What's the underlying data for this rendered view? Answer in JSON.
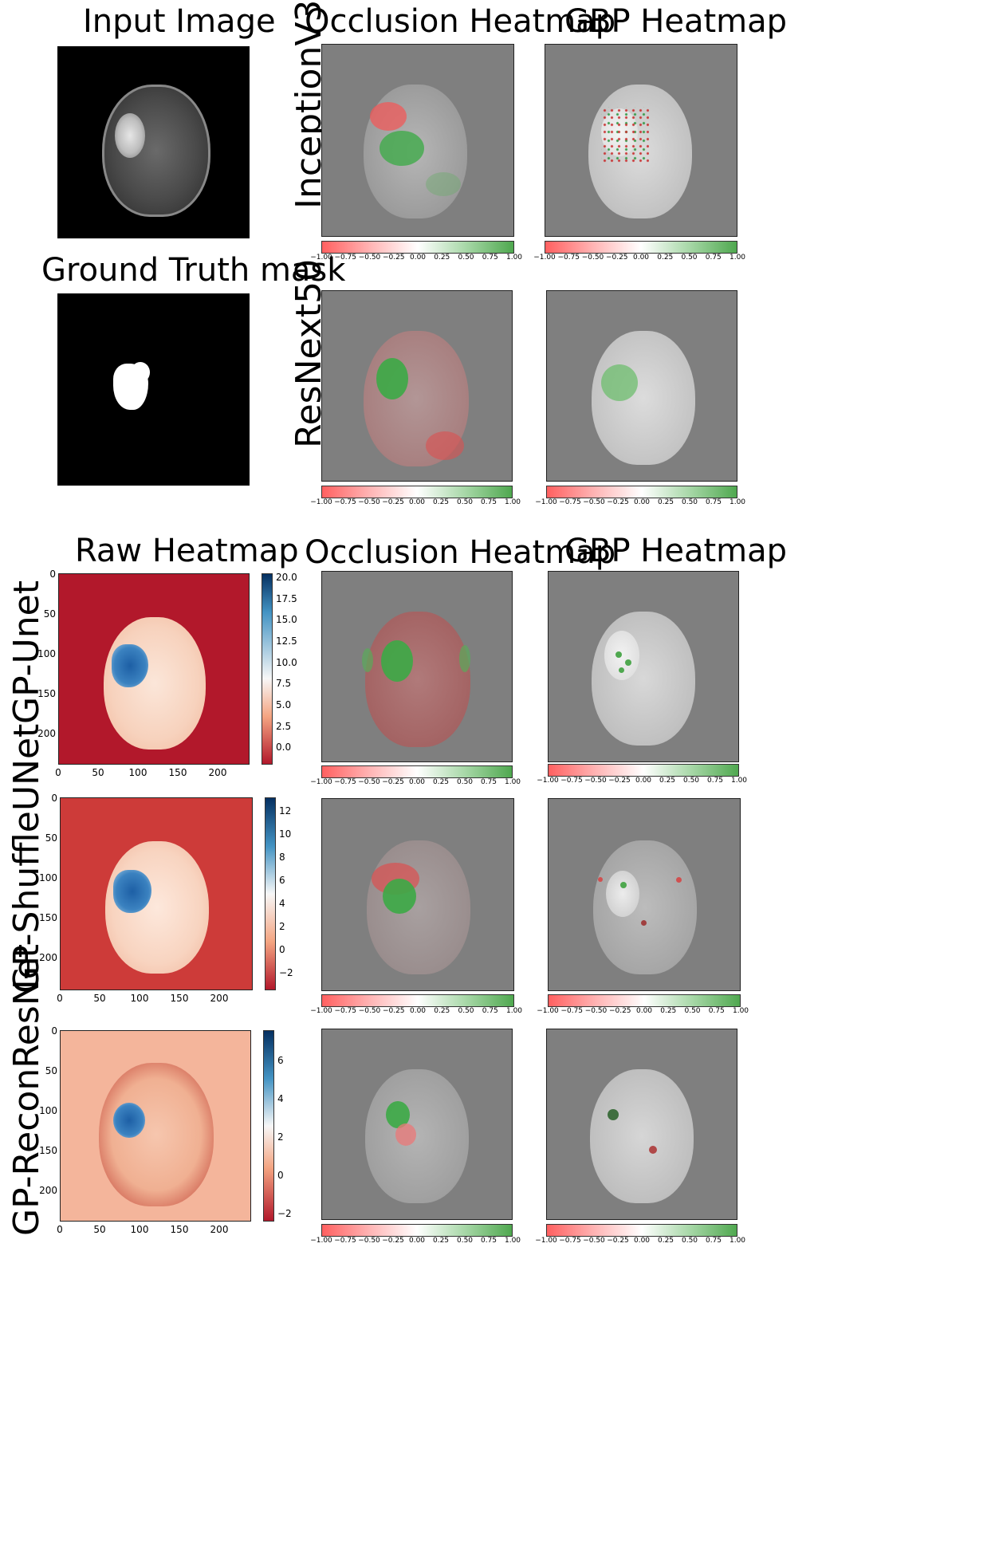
{
  "titles": {
    "input_image": "Input Image",
    "occlusion_top": "Occlusion Heatmap",
    "gbp_top": "GBP Heatmap",
    "ground_truth": "Ground Truth mask",
    "raw_heatmap": "Raw Heatmap",
    "occlusion_bottom": "Occlusion Heatmap",
    "gbp_bottom": "GBP Heatmap"
  },
  "row_labels": {
    "inception": "InceptionV3",
    "resnext": "ResNext50",
    "gp_unet": "GP-Unet",
    "gp_shuffle": "GP-ShuffleUNet",
    "gp_recon": "GP-ReconResNet"
  },
  "heatmap_colorbar_ticks": [
    "−1.00",
    "−0.75",
    "−0.50",
    "−0.25",
    "0.00",
    "0.25",
    "0.50",
    "0.75",
    "1.00"
  ],
  "raw_axis": {
    "x_ticks": [
      "0",
      "50",
      "100",
      "150",
      "200"
    ],
    "y_ticks": [
      "0",
      "50",
      "100",
      "150",
      "200"
    ]
  },
  "raw_colorbars": {
    "gp_unet": [
      "20.0",
      "17.5",
      "15.0",
      "12.5",
      "10.0",
      "7.5",
      "5.0",
      "2.5",
      "0.0"
    ],
    "gp_shuffle": [
      "12",
      "10",
      "8",
      "6",
      "4",
      "2",
      "0",
      "−2"
    ],
    "gp_recon": [
      "6",
      "4",
      "2",
      "0",
      "−2"
    ]
  },
  "colors": {
    "negative": "#ff6060",
    "positive": "#4fa84f",
    "panel_gray": "#7f7f7f",
    "raw_red": "#b2182b",
    "raw_blue": "#2166ac"
  }
}
